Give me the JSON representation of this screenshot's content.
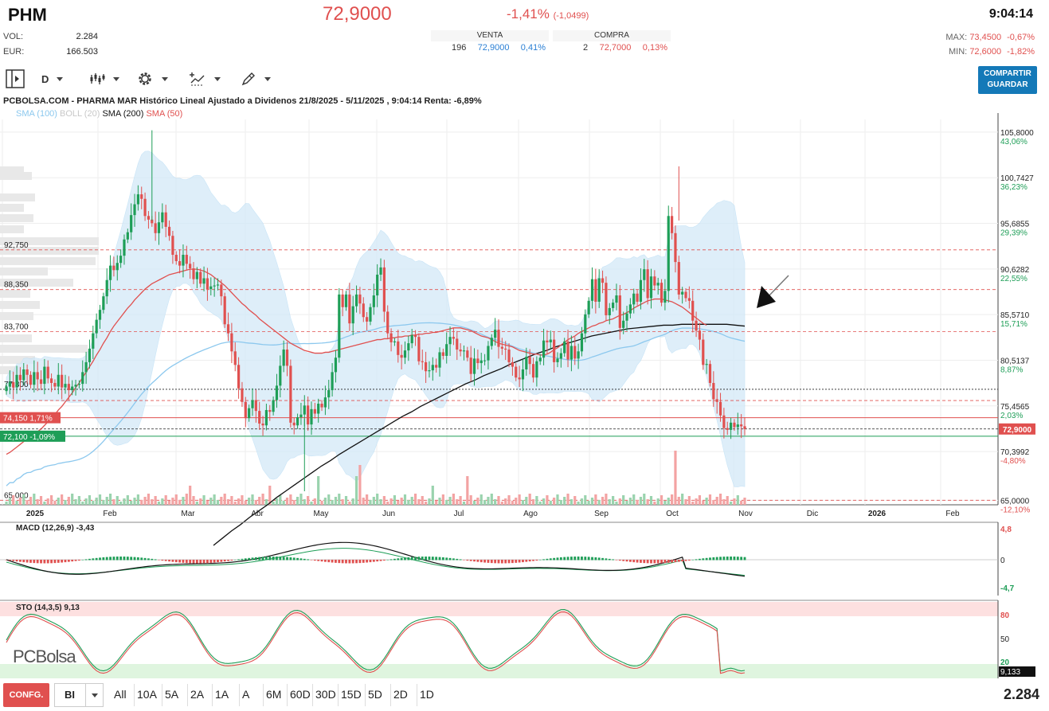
{
  "quote": {
    "symbol": "PHM",
    "price": "72,9000",
    "change_pct": "-1,41%",
    "change_abs": "(-1,0499)",
    "time": "9:04:14",
    "vol_label": "VOL:",
    "vol_value": "2.284",
    "eur_label": "EUR:",
    "eur_value": "166.503",
    "venta_label": "VENTA",
    "venta_qty": "196",
    "venta_price": "72,9000",
    "venta_pct": "0,41%",
    "compra_label": "COMPRA",
    "compra_qty": "2",
    "compra_price": "72,7000",
    "compra_pct": "0,13%",
    "max_label": "MAX:",
    "max_value": "73,4500",
    "max_pct": "-0,67%",
    "min_label": "MIN:",
    "min_value": "72,6000",
    "min_pct": "-1,82%"
  },
  "toolbar": {
    "period": "D",
    "share_line1": "COMPARTIR",
    "share_line2": "GUARDAR"
  },
  "bottom_bar": {
    "config": "CONFG.",
    "scale": "BI",
    "ranges": [
      "All",
      "10A",
      "5A",
      "2A",
      "1A",
      "A",
      "6M",
      "60D",
      "30D",
      "15D",
      "5D",
      "2D",
      "1D"
    ],
    "volume_total": "2.284"
  },
  "logo": "PCBolsa",
  "colors": {
    "up": "#1e9e57",
    "down": "#e0504f",
    "sma100": "#8cc8ee",
    "sma200": "#111111",
    "sma50": "#e0504f",
    "boll": "#d3e9f8",
    "accent": "#1479b8"
  },
  "chart_data": [
    {
      "type": "candlestick",
      "title": "PCBOLSA.COM - PHARMA MAR Histórico Lineal Ajustado a Dividenos 21/8/2025 - 5/11/2025 , 9:04:14 Renta: -6,89%",
      "legend": [
        {
          "name": "SMA (100)",
          "color": "#8cc8ee"
        },
        {
          "name": "BOLL (20)",
          "color": "#c8c8c8"
        },
        {
          "name": "SMA (200)",
          "color": "#111111"
        },
        {
          "name": "SMA (50)",
          "color": "#e0504f"
        }
      ],
      "x_ticks": [
        "2025",
        "Feb",
        "Mar",
        "Abr",
        "May",
        "Jun",
        "Jul",
        "Ago",
        "Sep",
        "Oct",
        "Nov",
        "Dic",
        "2026",
        "Feb"
      ],
      "y_ticks": [
        {
          "value": "105,8000",
          "pct": "43,06%"
        },
        {
          "value": "100,7427",
          "pct": "36,23%"
        },
        {
          "value": "95,6855",
          "pct": "29,39%"
        },
        {
          "value": "90,6282",
          "pct": "22,55%"
        },
        {
          "value": "85,5710",
          "pct": "15,71%"
        },
        {
          "value": "80,5137",
          "pct": "8,87%"
        },
        {
          "value": "75,4565",
          "pct": "2,03%"
        },
        {
          "value": "70,3992",
          "pct": "-4,80%"
        },
        {
          "value": "65,0000",
          "pct": "-12,10%"
        }
      ],
      "ylim": [
        64.5,
        107.2
      ],
      "last_price_label": "72,9000",
      "level_labels": [
        {
          "value": 92.75,
          "label": "92,750"
        },
        {
          "value": 88.35,
          "label": "88,350"
        },
        {
          "value": 83.7,
          "label": "83,700"
        },
        {
          "value": 77.3,
          "label": "77,300"
        },
        {
          "value": 65.0,
          "label": "65,000"
        }
      ],
      "price_flags": [
        {
          "value": 74.15,
          "label": "74,150",
          "pct": "1,71%"
        },
        {
          "value": 72.1,
          "label": "72,100",
          "pct": "-1,09%"
        }
      ],
      "close": [
        77.6,
        78.1,
        77.5,
        78.9,
        78.3,
        79.5,
        78.9,
        77.8,
        79.2,
        78.4,
        77.9,
        79.8,
        78.5,
        78.0,
        77.6,
        78.9,
        77.5,
        77.9,
        77.2,
        77.6,
        77.8,
        77.9,
        79.2,
        80.3,
        81.8,
        83.5,
        85.0,
        86.1,
        87.6,
        89.4,
        91.0,
        90.5,
        91.3,
        92.1,
        93.9,
        94.7,
        96.6,
        97.8,
        98.9,
        98.4,
        96.5,
        96.1,
        95.7,
        94.6,
        95.8,
        96.9,
        95.3,
        94.3,
        92.2,
        91.5,
        91.0,
        92.2,
        91.2,
        90.7,
        89.5,
        90.3,
        89.0,
        89.6,
        88.4,
        88.7,
        88.8,
        88.9,
        87.6,
        84.5,
        83.5,
        81.5,
        80.0,
        77.4,
        75.9,
        74.1,
        75.2,
        76.1,
        74.9,
        73.5,
        73.3,
        75.0,
        74.8,
        76.1,
        77.7,
        79.9,
        81.7,
        79.9,
        73.6,
        73.3,
        74.2,
        74.5,
        75.5,
        73.4,
        75.1,
        74.6,
        75.7,
        75.3,
        76.4,
        77.2,
        79.2,
        80.8,
        87.8,
        86.4,
        87.8,
        84.6,
        86.5,
        87.8,
        86.8,
        85.3,
        84.8,
        86.4,
        87.7,
        90.0,
        90.8,
        85.9,
        83.5,
        82.5,
        82.6,
        81.1,
        80.8,
        81.6,
        82.4,
        83.3,
        83.1,
        80.4,
        80.3,
        79.3,
        79.4,
        80.0,
        79.7,
        81.4,
        81.0,
        82.3,
        83.1,
        82.9,
        81.7,
        81.5,
        81.6,
        80.8,
        79.0,
        80.7,
        80.2,
        80.5,
        80.5,
        82.1,
        83.0,
        83.9,
        82.0,
        81.8,
        81.7,
        80.3,
        79.8,
        78.6,
        78.4,
        79.5,
        80.9,
        80.1,
        78.6,
        80.4,
        80.8,
        82.7,
        82.5,
        82.8,
        80.3,
        80.7,
        81.3,
        82.6,
        80.6,
        82.1,
        80.7,
        81.5,
        83.5,
        85.6,
        87.1,
        89.5,
        87.0,
        89.6,
        89.1,
        85.5,
        86.3,
        86.9,
        87.7,
        84.1,
        84.9,
        85.7,
        86.7,
        87.9,
        87.0,
        89.4,
        90.6,
        87.4,
        89.8,
        88.8,
        89.1,
        86.9,
        88.2,
        96.5,
        94.6,
        91.4,
        87.8,
        88.1,
        87.4,
        87.1,
        84.9,
        83.8,
        82.8,
        80.0,
        80.1,
        78.0,
        76.2,
        75.9,
        74.4,
        73.0,
        72.8,
        73.6,
        73.1,
        73.4,
        73.2,
        72.9
      ],
      "sma50": [
        70.1,
        70.3,
        70.6,
        70.9,
        71.2,
        71.5,
        71.8,
        72.0,
        72.3,
        72.6,
        72.9,
        73.3,
        73.7,
        74.1,
        74.5,
        75.0,
        75.4,
        75.9,
        76.4,
        76.9,
        77.5,
        78.0,
        78.6,
        79.2,
        79.8,
        80.4,
        81.1,
        81.7,
        82.4,
        83.0,
        83.7,
        84.3,
        84.8,
        85.3,
        85.8,
        86.3,
        86.7,
        87.2,
        87.6,
        88.0,
        88.4,
        88.7,
        89.0,
        89.2,
        89.4,
        89.6,
        89.8,
        90.0,
        90.1,
        90.2,
        90.3,
        90.4,
        90.5,
        90.6,
        90.6,
        90.6,
        90.5,
        90.4,
        90.2,
        90.0,
        89.7,
        89.4,
        89.1,
        88.8,
        88.4,
        88.0,
        87.6,
        87.2,
        86.8,
        86.5,
        86.1,
        85.8,
        85.5,
        85.1,
        84.8,
        84.5,
        84.2,
        83.9,
        83.6,
        83.3,
        83.0,
        82.7,
        82.4,
        82.2,
        82.0,
        81.8,
        81.6,
        81.5,
        81.4,
        81.3,
        81.3,
        81.3,
        81.4,
        81.4,
        81.5,
        81.6,
        81.7,
        81.8,
        81.9,
        82.0,
        82.1,
        82.2,
        82.3,
        82.4,
        82.5,
        82.6,
        82.7,
        82.8,
        82.8,
        82.9,
        82.9,
        83.0,
        83.0,
        83.1,
        83.1,
        83.2,
        83.2,
        83.3,
        83.3,
        83.4,
        83.4,
        83.5,
        83.5,
        83.6,
        83.6,
        83.7,
        83.8,
        83.9,
        84.0,
        84.1,
        84.1,
        84.1,
        84.0,
        83.9,
        83.8,
        83.6,
        83.4,
        83.2,
        83.1,
        83.0,
        82.8,
        82.6,
        82.4,
        82.3,
        82.2,
        82.1,
        82.0,
        81.8,
        81.6,
        81.5,
        81.4,
        81.3,
        81.2,
        81.2,
        81.1,
        81.1,
        81.2,
        81.4,
        81.7,
        81.9,
        82.2,
        82.5,
        82.8,
        83.0,
        83.2,
        83.5,
        83.7,
        83.9,
        84.1,
        84.3,
        84.4,
        84.6,
        84.7,
        84.9,
        85.0,
        85.1,
        85.3,
        85.5,
        85.6,
        85.8,
        86.0,
        86.3,
        86.5,
        86.7,
        86.9,
        87.1,
        87.2,
        87.3,
        87.3,
        87.3,
        87.2,
        87.1,
        87.0,
        86.8,
        86.6,
        86.4,
        86.1,
        85.8,
        85.5,
        85.2,
        84.9,
        84.6,
        84.4
      ],
      "sma200": [
        60,
        60.8,
        61.6,
        62.3,
        63.1,
        63.8,
        64.5,
        65.3,
        66.0,
        66.7,
        67.4,
        68.1,
        68.8,
        69.4,
        70.1,
        70.7,
        71.3,
        71.9,
        72.5,
        73.1,
        73.7,
        74.3,
        74.8,
        75.4,
        75.9,
        76.4,
        76.9,
        77.4,
        77.9,
        78.3,
        78.8,
        79.2,
        79.6,
        80.1,
        80.5,
        80.9,
        81.3,
        81.6,
        82.0,
        82.3,
        82.6,
        82.9,
        83.2,
        83.4,
        83.6,
        83.8,
        84.0,
        84.1,
        84.2,
        84.3,
        84.4,
        84.4,
        84.5,
        84.5,
        84.5,
        84.5,
        84.5,
        84.5,
        84.4,
        84.3
      ],
      "volume_max": 100,
      "macd": {
        "label": "MACD (12,26,9)",
        "value": "-3,43",
        "ticks": [
          "4,8",
          "0",
          "-4,7"
        ]
      },
      "sto": {
        "label": "STO (14,3,5)",
        "value": "9,13",
        "last": "9,133",
        "ticks": [
          "80",
          "50",
          "20"
        ]
      }
    }
  ]
}
